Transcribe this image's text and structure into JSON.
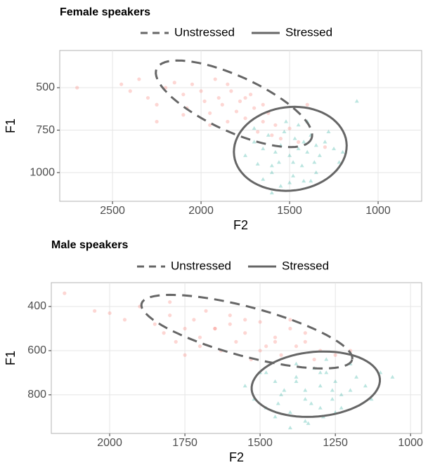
{
  "chart_data": [
    {
      "type": "scatter",
      "title": "Female speakers",
      "xlabel": "F2",
      "ylabel": "F1",
      "xlim": [
        2798,
        754
      ],
      "ylim": [
        281,
        1169
      ],
      "xticks": [
        2500,
        2000,
        1500,
        1000
      ],
      "yticks": [
        500,
        750,
        1000
      ],
      "grid": true,
      "legend": "top",
      "ellipse_color": "#666666",
      "series": [
        {
          "name": "Unstressed",
          "color": "#f8766d",
          "marker": "circle",
          "linestyle": "dashed",
          "x": [
            2700,
            2450,
            2400,
            2350,
            2300,
            2250,
            2200,
            2150,
            2100,
            2080,
            2050,
            2000,
            1980,
            1950,
            1920,
            1900,
            1880,
            1850,
            1830,
            1800,
            1780,
            1750,
            1720,
            1700,
            1680,
            1650,
            1620,
            1600,
            1580,
            1550,
            1500,
            1450,
            1400,
            2250,
            2100,
            1950,
            1850,
            1750,
            1650,
            1300
          ],
          "y": [
            500,
            480,
            520,
            450,
            560,
            600,
            500,
            470,
            540,
            620,
            480,
            520,
            580,
            650,
            450,
            560,
            600,
            700,
            520,
            640,
            580,
            680,
            540,
            620,
            760,
            700,
            650,
            780,
            720,
            800,
            740,
            820,
            600,
            700,
            660,
            720,
            480,
            560,
            600,
            850
          ],
          "ellipse": {
            "center": [
              1814,
              595
            ],
            "axis1": [
              -437,
              207
            ],
            "axis2": [
              63,
              149
            ]
          }
        },
        {
          "name": "Stressed",
          "color": "#1fa898",
          "marker": "triangle",
          "linestyle": "solid",
          "x": [
            1750,
            1700,
            1680,
            1650,
            1620,
            1600,
            1580,
            1560,
            1550,
            1530,
            1500,
            1480,
            1470,
            1450,
            1430,
            1420,
            1400,
            1380,
            1360,
            1350,
            1330,
            1300,
            1280,
            1250,
            1220,
            1200,
            1550,
            1500,
            1450,
            1400,
            1600,
            1650,
            1350,
            1480,
            1520,
            1420,
            1380,
            1700,
            1120,
            1600
          ],
          "y": [
            900,
            820,
            950,
            860,
            780,
            1000,
            880,
            940,
            840,
            760,
            900,
            1020,
            800,
            860,
            960,
            1050,
            880,
            780,
            940,
            840,
            900,
            820,
            760,
            860,
            940,
            880,
            1080,
            1060,
            720,
            700,
            960,
            1040,
            1000,
            940,
            700,
            820,
            1050,
            740,
            580,
            1120
          ],
          "ellipse": {
            "center": [
              1496,
              860
            ],
            "axis1": [
              -317,
              -41
            ],
            "axis2": [
              -30,
              244
            ]
          }
        }
      ]
    },
    {
      "type": "scatter",
      "title": "Male speakers",
      "xlabel": "F2",
      "ylabel": "F1",
      "xlim": [
        2194,
        963
      ],
      "ylim": [
        292,
        975
      ],
      "xticks": [
        2000,
        1750,
        1500,
        1250,
        1000
      ],
      "yticks": [
        400,
        600,
        800
      ],
      "grid": true,
      "legend": "top",
      "ellipse_color": "#666666",
      "series": [
        {
          "name": "Unstressed",
          "color": "#f8766d",
          "marker": "circle",
          "linestyle": "dashed",
          "x": [
            2150,
            2050,
            2000,
            1950,
            1900,
            1850,
            1820,
            1800,
            1780,
            1750,
            1720,
            1700,
            1680,
            1650,
            1630,
            1600,
            1580,
            1550,
            1530,
            1500,
            1480,
            1450,
            1430,
            1400,
            1380,
            1350,
            1320,
            1300,
            1250,
            1200,
            1800,
            1700,
            1600,
            1500,
            1400,
            1650,
            1550,
            1450,
            1750,
            1350
          ],
          "y": [
            340,
            420,
            430,
            460,
            400,
            480,
            520,
            440,
            560,
            500,
            460,
            540,
            420,
            500,
            600,
            480,
            560,
            520,
            640,
            470,
            580,
            540,
            620,
            500,
            580,
            560,
            640,
            600,
            620,
            600,
            380,
            580,
            440,
            600,
            460,
            500,
            460,
            560,
            620,
            520
          ],
          "ellipse": {
            "center": [
              1544,
              514
            ],
            "axis1": [
              -350,
              127
            ],
            "axis2": [
              21,
              108
            ]
          }
        },
        {
          "name": "Stressed",
          "color": "#1fa898",
          "marker": "triangle",
          "linestyle": "solid",
          "x": [
            1550,
            1520,
            1500,
            1480,
            1450,
            1430,
            1400,
            1380,
            1350,
            1330,
            1300,
            1280,
            1260,
            1250,
            1230,
            1200,
            1180,
            1150,
            1130,
            1100,
            1450,
            1400,
            1350,
            1300,
            1250,
            1380,
            1320,
            1280,
            1420,
            1230,
            1340,
            1480,
            1300,
            1200,
            1380,
            1060,
            1260,
            1350,
            1440,
            1290
          ],
          "y": [
            760,
            820,
            700,
            860,
            740,
            800,
            880,
            720,
            780,
            840,
            760,
            700,
            820,
            740,
            800,
            780,
            720,
            760,
            820,
            700,
            900,
            950,
            920,
            860,
            880,
            660,
            680,
            640,
            780,
            860,
            930,
            700,
            700,
            660,
            740,
            720,
            780,
            820,
            840,
            900
          ],
          "ellipse": {
            "center": [
              1315,
              752
            ],
            "axis1": [
              -213,
              -25
            ],
            "axis2": [
              -9,
              146
            ]
          }
        }
      ]
    }
  ]
}
